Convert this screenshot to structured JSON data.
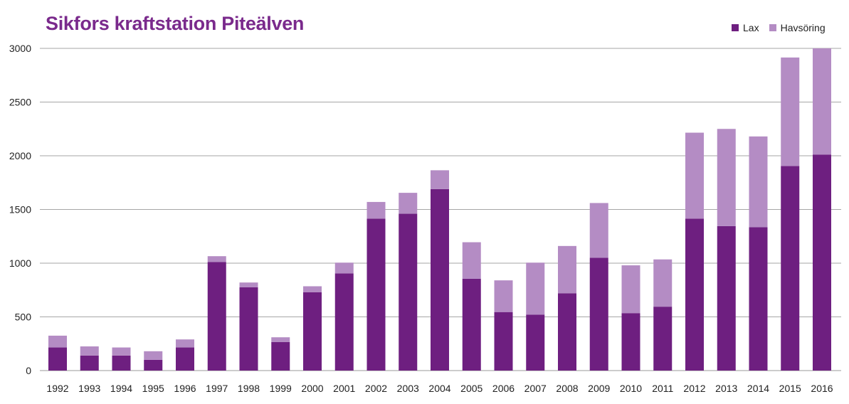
{
  "chart_data": {
    "type": "bar",
    "stacked": true,
    "title": "Sikfors kraftstation Piteälven",
    "xlabel": "",
    "ylabel": "",
    "ylim": [
      0,
      3000
    ],
    "yticks": [
      0,
      500,
      1000,
      1500,
      2000,
      2500,
      3000
    ],
    "grid": true,
    "legend_position": "top-right",
    "categories": [
      "1992",
      "1993",
      "1994",
      "1995",
      "1996",
      "1997",
      "1998",
      "1999",
      "2000",
      "2001",
      "2002",
      "2003",
      "2004",
      "2005",
      "2006",
      "2007",
      "2008",
      "2009",
      "2010",
      "2011",
      "2012",
      "2013",
      "2014",
      "2015",
      "2016"
    ],
    "series": [
      {
        "name": "Lax",
        "color": "#6e1f80",
        "values": [
          215,
          140,
          140,
          100,
          215,
          1010,
          775,
          265,
          730,
          905,
          1415,
          1460,
          1690,
          855,
          545,
          520,
          720,
          1050,
          535,
          595,
          1415,
          1345,
          1335,
          1905,
          2010
        ]
      },
      {
        "name": "Havsöring",
        "color": "#b48cc4",
        "values": [
          110,
          85,
          75,
          80,
          75,
          55,
          45,
          45,
          55,
          100,
          155,
          195,
          175,
          340,
          295,
          485,
          440,
          510,
          445,
          440,
          800,
          905,
          845,
          1010,
          990
        ]
      }
    ]
  },
  "title_color": "#7a2a8c"
}
